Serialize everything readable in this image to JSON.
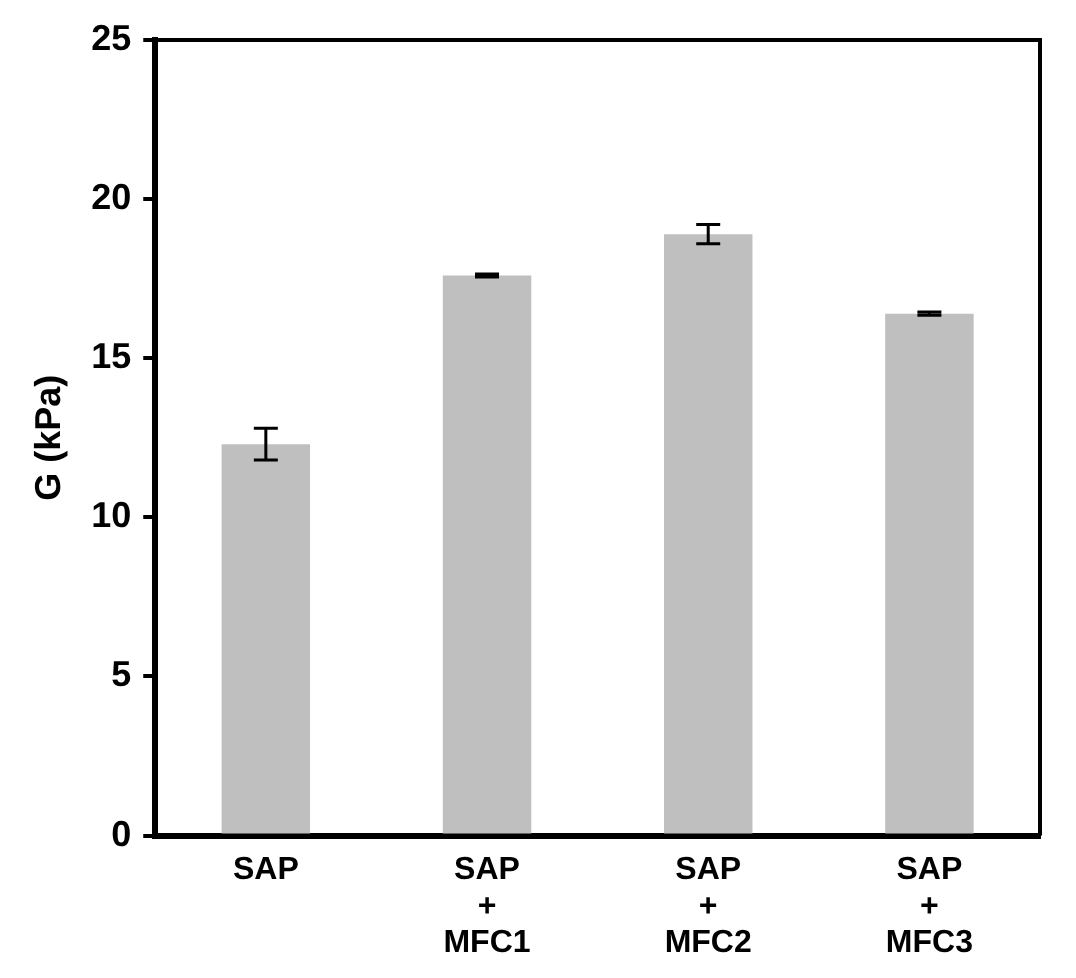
{
  "chart_data": {
    "type": "bar",
    "ylabel": "G (kPa)",
    "categories": [
      "SAP",
      "SAP\n+\nMFC1",
      "SAP\n+\nMFC2",
      "SAP\n+\nMFC3"
    ],
    "values": [
      12.3,
      17.6,
      18.9,
      16.4
    ],
    "errors": [
      0.5,
      0.05,
      0.3,
      0.05
    ],
    "color": "#bfbfbf",
    "ylim": [
      0,
      25
    ],
    "yticks": [
      0,
      5,
      10,
      15,
      20,
      25
    ],
    "grid": false,
    "legend": false
  }
}
